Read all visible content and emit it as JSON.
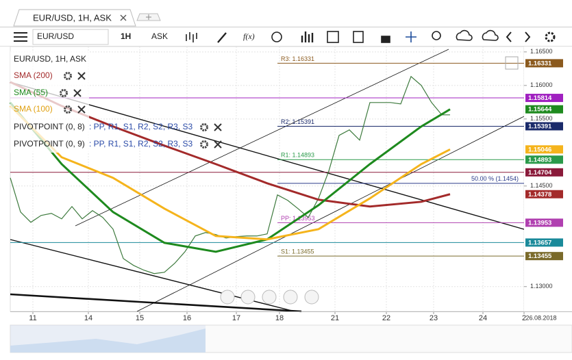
{
  "tabs": [
    {
      "title": "EUR/USD, 1H, ASK"
    }
  ],
  "toolbar": {
    "symbol": "EUR/USD",
    "timeframe": "1H",
    "price_type": "ASK",
    "function": "f(x)"
  },
  "chart_data": {
    "type": "line",
    "xlim": [
      0,
      250
    ],
    "xticks": [
      11,
      {
        "value": 38,
        "label": "14"
      },
      {
        "value": 63,
        "label": "15"
      },
      {
        "value": 86,
        "label": "16"
      },
      {
        "value": 110,
        "label": "17"
      },
      {
        "value": 131,
        "label": "18"
      },
      {
        "value": 158,
        "label": "21"
      },
      {
        "value": 183,
        "label": "22"
      },
      {
        "value": 206,
        "label": "23"
      },
      {
        "value": 230,
        "label": "24"
      },
      {
        "value": 250,
        "label": "2"
      }
    ],
    "date_label": "26.08.2018",
    "ylim": [
      1.1263,
      1.1658
    ],
    "yticks": [
      {
        "value": 1.165,
        "label": "1.16500"
      },
      {
        "value": 1.16,
        "label": "1.16000"
      },
      {
        "value": 1.155,
        "label": "1.15500"
      },
      {
        "value": 1.145,
        "label": "1.14500"
      },
      {
        "value": 1.13,
        "label": "1.13000"
      }
    ],
    "grid": true,
    "series": [
      {
        "name": "EUR/USD, 1H, ASK",
        "color": "#3d7a3d",
        "x": [
          0,
          5,
          10,
          15,
          20,
          25,
          30,
          35,
          40,
          45,
          50,
          55,
          60,
          65,
          70,
          75,
          80,
          85,
          90,
          95,
          100,
          105,
          110,
          115,
          120,
          125,
          130,
          135,
          140,
          145,
          150,
          155,
          160,
          165,
          170,
          175,
          180,
          185,
          190,
          195,
          200,
          205,
          210,
          214
        ],
        "values": [
          1.14622,
          1.14112,
          1.13959,
          1.14061,
          1.14092,
          1.1401,
          1.14194,
          1.1401,
          1.14133,
          1.14031,
          1.13857,
          1.13418,
          1.13316,
          1.13245,
          1.13194,
          1.13214,
          1.13347,
          1.1352,
          1.13755,
          1.13806,
          1.13776,
          1.13724,
          1.13745,
          1.13755,
          1.13755,
          1.13786,
          1.14367,
          1.14286,
          1.14163,
          1.14031,
          1.14316,
          1.14724,
          1.15255,
          1.15337,
          1.15184,
          1.15745,
          1.15745,
          1.15745,
          1.15724,
          1.16133,
          1.16,
          1.15745,
          1.15561,
          1.15561
        ]
      },
      {
        "name": "SMA (200)",
        "color": "#a32a2a",
        "x": [
          0,
          25,
          50,
          75,
          100,
          125,
          150,
          175,
          200,
          214
        ],
        "values": [
          1.16051,
          1.15694,
          1.15388,
          1.15102,
          1.14827,
          1.14541,
          1.14296,
          1.14194,
          1.14265,
          1.14378
        ]
      },
      {
        "name": "SMA (55)",
        "color": "#1e8a1e",
        "x": [
          0,
          25,
          50,
          75,
          100,
          125,
          150,
          175,
          200,
          214
        ],
        "values": [
          1.15745,
          1.14827,
          1.14112,
          1.13653,
          1.1352,
          1.13704,
          1.14214,
          1.14827,
          1.15388,
          1.15644
        ]
      },
      {
        "name": "SMA (100)",
        "color": "#f5b41c",
        "x": [
          0,
          25,
          50,
          75,
          100,
          125,
          150,
          175,
          200,
          214
        ],
        "values": [
          1.15694,
          1.14929,
          1.14622,
          1.14163,
          1.13755,
          1.13704,
          1.13857,
          1.14316,
          1.14827,
          1.15046
        ]
      }
    ],
    "pivots": [
      {
        "name": "PIVOTPOINT (0, 8)",
        "levels": ": PP, R1, S1, R2, S2, R3, S3"
      },
      {
        "name": "PIVOTPOINT (0, 9)",
        "levels": ": PP, R1, S1, R2, S2, R3, S3"
      }
    ],
    "levels": [
      {
        "label": "R3: 1.16331",
        "value": 1.16331,
        "color": "#8b5a1e"
      },
      {
        "value": 1.15814,
        "color": "#a020c0"
      },
      {
        "label": "R2: 1.15391",
        "value": 1.15391,
        "color": "#1a2a6a"
      },
      {
        "label": "R1: 1.14893",
        "value": 1.14893,
        "color": "#2a9a4a"
      },
      {
        "value": 1.14704,
        "color": "#8a1a3a"
      },
      {
        "label": "50.00 % (1.1454)",
        "value": 1.1454,
        "color": "#2a3a8a"
      },
      {
        "label": "PP: 1.13953",
        "value": 1.13953,
        "color": "#b040b0"
      },
      {
        "value": 1.13657,
        "color": "#1a8a9a"
      },
      {
        "label": "S1: 1.13455",
        "value": 1.13455,
        "color": "#7a6a2a"
      }
    ]
  }
}
